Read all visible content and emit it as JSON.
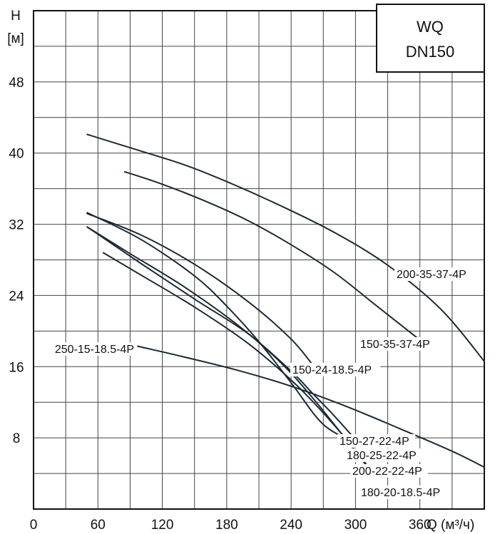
{
  "chart_data": {
    "type": "line",
    "title_box": [
      "WQ",
      "DN150"
    ],
    "ylabel": [
      "H",
      "[м]"
    ],
    "xlabel": "Q (м³/ч)",
    "xlim": [
      0,
      420
    ],
    "ylim": [
      0,
      56
    ],
    "x_ticks": [
      0,
      60,
      120,
      180,
      240,
      300,
      360
    ],
    "y_ticks": [
      8,
      16,
      24,
      32,
      40,
      48
    ],
    "grid": true,
    "series": [
      {
        "name": "200-35-37-4P",
        "x": [
          50,
          90,
          140,
          180,
          230,
          280,
          330,
          380,
          420
        ],
        "y": [
          42.1,
          40.6,
          38.7,
          36.8,
          34.1,
          31.1,
          27.4,
          22.4,
          16.6
        ]
      },
      {
        "name": "150-35-37-4P",
        "x": [
          85,
          120,
          160,
          200,
          240,
          280,
          320,
          360
        ],
        "y": [
          37.9,
          36.5,
          34.6,
          32.4,
          29.7,
          26.6,
          22.8,
          19.0
        ]
      },
      {
        "name": "150-24-18.5-4P",
        "x": [
          50,
          100,
          150,
          200,
          240,
          262
        ],
        "y": [
          33.2,
          30.8,
          27.5,
          23.3,
          19.1,
          15.9
        ]
      },
      {
        "name": "150-27-22-4P",
        "x": [
          50,
          100,
          150,
          180,
          210,
          240,
          270,
          300
        ],
        "y": [
          33.3,
          30.3,
          26.2,
          22.8,
          18.8,
          14.2,
          9.5,
          7.5
        ]
      },
      {
        "name": "180-25-22-4P",
        "x": [
          50,
          100,
          150,
          200,
          240,
          260,
          280,
          300
        ],
        "y": [
          31.7,
          27.6,
          23.6,
          19.7,
          15.5,
          13.0,
          10.5,
          7.8
        ]
      },
      {
        "name": "200-22-22-4P",
        "x": [
          65,
          100,
          150,
          200,
          240,
          270,
          300,
          315
        ],
        "y": [
          28.8,
          26.3,
          22.7,
          18.6,
          14.5,
          10.8,
          6.6,
          4.2
        ]
      },
      {
        "name": "180-20-18.5-4P",
        "x": [
          50,
          90,
          140,
          190,
          230,
          260,
          290,
          310
        ],
        "y": [
          31.7,
          28.7,
          25.0,
          20.7,
          16.5,
          12.5,
          8.0,
          4.9
        ]
      },
      {
        "name": "250-15-18.5-4P",
        "x": [
          97,
          140,
          190,
          240,
          290,
          340,
          390,
          420
        ],
        "y": [
          18.3,
          17.1,
          15.6,
          13.8,
          11.6,
          9.1,
          6.5,
          4.7
        ]
      }
    ]
  }
}
